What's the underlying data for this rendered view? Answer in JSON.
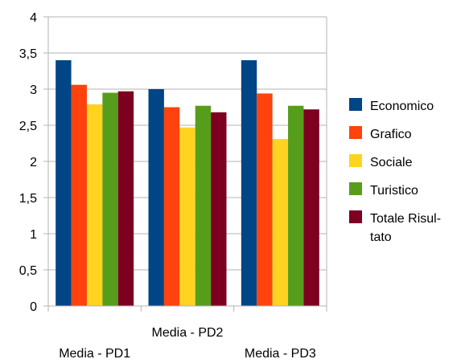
{
  "chart_data": {
    "type": "bar",
    "categories": [
      "Media - PD1",
      "Media - PD2",
      "Media - PD3"
    ],
    "series": [
      {
        "name": "Economico",
        "color": "#004586",
        "values": [
          3.4,
          3.0,
          3.4
        ]
      },
      {
        "name": "Grafico",
        "color": "#ff420e",
        "values": [
          3.06,
          2.75,
          2.94
        ]
      },
      {
        "name": "Sociale",
        "color": "#ffd320",
        "values": [
          2.79,
          2.47,
          2.31
        ]
      },
      {
        "name": "Turistico",
        "color": "#579d1c",
        "values": [
          2.95,
          2.77,
          2.77
        ]
      },
      {
        "name": "Totale Risul-\ntato",
        "color": "#7e0021",
        "values": [
          2.97,
          2.68,
          2.72
        ]
      }
    ],
    "ylim": [
      0,
      4
    ],
    "yticks": [
      "0",
      "0,5",
      "1",
      "1,5",
      "2",
      "2,5",
      "3",
      "3,5",
      "4"
    ],
    "grid": true,
    "legend": "right"
  }
}
